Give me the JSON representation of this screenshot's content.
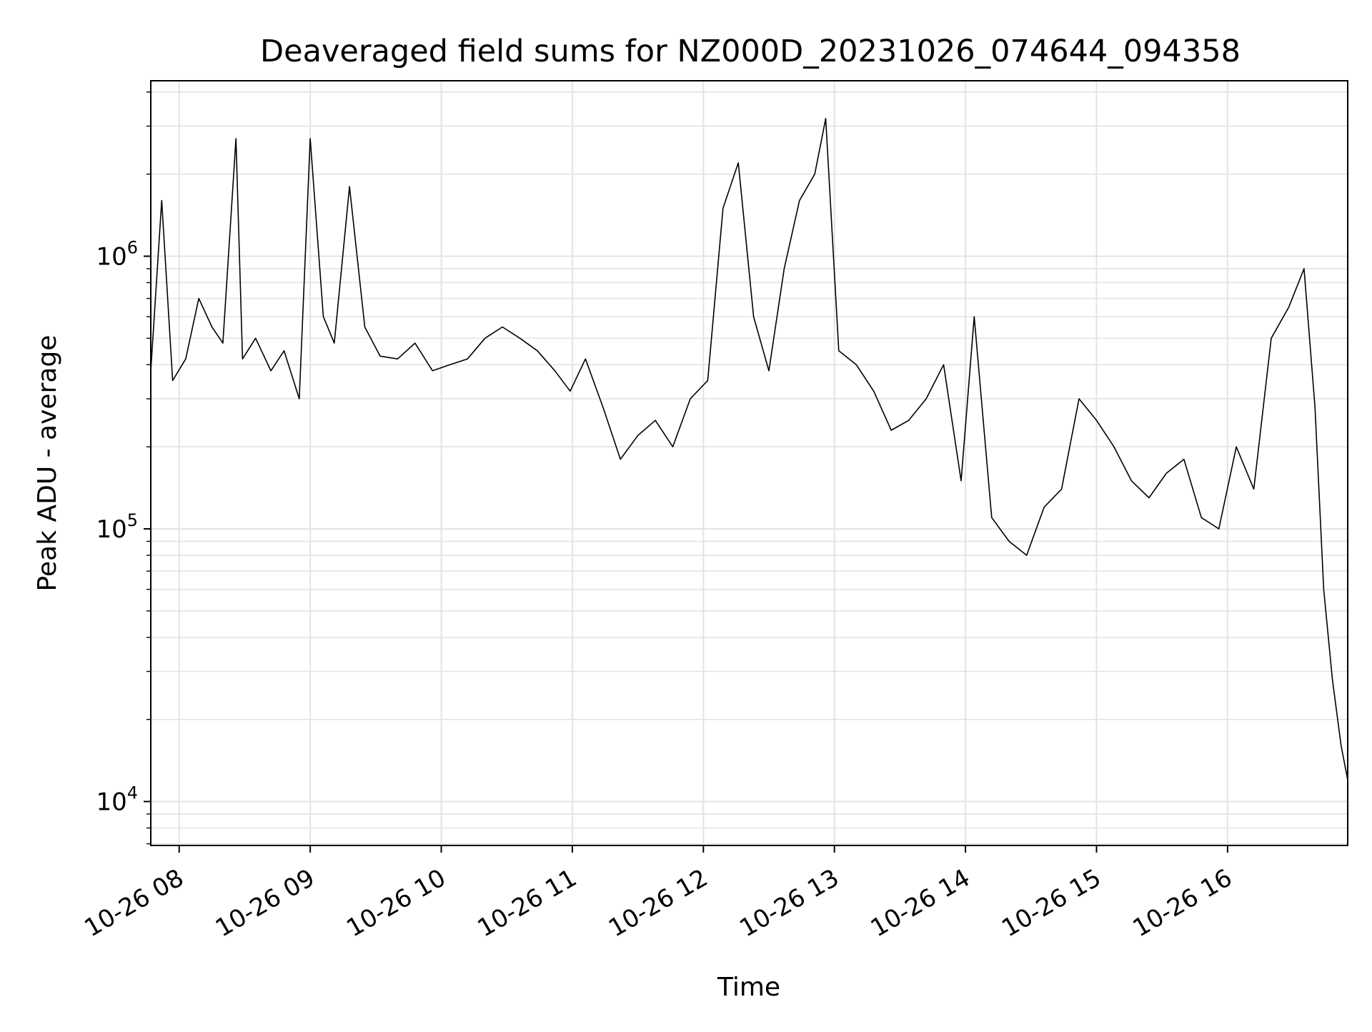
{
  "chart_data": {
    "type": "line",
    "title": "Deaveraged field sums for NZ000D_20231026_074644_094358",
    "xlabel": "Time",
    "ylabel": "Peak ADU - average",
    "yscale": "log",
    "ylim": [
      6900,
      4400000
    ],
    "xlim": [
      "10-26 07:47",
      "10-26 16:55"
    ],
    "grid": true,
    "line_color": "#000000",
    "x_ticks": [
      {
        "label": "10-26 08",
        "value": "10-26 08:00"
      },
      {
        "label": "10-26 09",
        "value": "10-26 09:00"
      },
      {
        "label": "10-26 10",
        "value": "10-26 10:00"
      },
      {
        "label": "10-26 11",
        "value": "10-26 11:00"
      },
      {
        "label": "10-26 12",
        "value": "10-26 12:00"
      },
      {
        "label": "10-26 13",
        "value": "10-26 13:00"
      },
      {
        "label": "10-26 14",
        "value": "10-26 14:00"
      },
      {
        "label": "10-26 15",
        "value": "10-26 15:00"
      },
      {
        "label": "10-26 16",
        "value": "10-26 16:00"
      }
    ],
    "y_ticks": [
      {
        "base": "10",
        "exp": "4",
        "value": 10000
      },
      {
        "base": "10",
        "exp": "5",
        "value": 100000
      },
      {
        "base": "10",
        "exp": "6",
        "value": 1000000
      }
    ],
    "series": [
      {
        "x": [
          "10-26 07:47",
          "10-26 07:52",
          "10-26 07:57",
          "10-26 08:03",
          "10-26 08:09",
          "10-26 08:15",
          "10-26 08:20",
          "10-26 08:26",
          "10-26 08:29",
          "10-26 08:35",
          "10-26 08:42",
          "10-26 08:48",
          "10-26 08:55",
          "10-26 09:00",
          "10-26 09:06",
          "10-26 09:11",
          "10-26 09:18",
          "10-26 09:25",
          "10-26 09:32",
          "10-26 09:40",
          "10-26 09:48",
          "10-26 09:56",
          "10-26 10:04",
          "10-26 10:12",
          "10-26 10:20",
          "10-26 10:28",
          "10-26 10:36",
          "10-26 10:44",
          "10-26 10:52",
          "10-26 10:59",
          "10-26 11:06",
          "10-26 11:14",
          "10-26 11:22",
          "10-26 11:30",
          "10-26 11:38",
          "10-26 11:46",
          "10-26 11:54",
          "10-26 12:02",
          "10-26 12:09",
          "10-26 12:16",
          "10-26 12:23",
          "10-26 12:30",
          "10-26 12:37",
          "10-26 12:44",
          "10-26 12:51",
          "10-26 12:56",
          "10-26 13:02",
          "10-26 13:10",
          "10-26 13:18",
          "10-26 13:26",
          "10-26 13:34",
          "10-26 13:42",
          "10-26 13:50",
          "10-26 13:58",
          "10-26 14:04",
          "10-26 14:12",
          "10-26 14:20",
          "10-26 14:28",
          "10-26 14:36",
          "10-26 14:44",
          "10-26 14:52",
          "10-26 15:00",
          "10-26 15:08",
          "10-26 15:16",
          "10-26 15:24",
          "10-26 15:32",
          "10-26 15:40",
          "10-26 15:48",
          "10-26 15:56",
          "10-26 16:04",
          "10-26 16:12",
          "10-26 16:20",
          "10-26 16:28",
          "10-26 16:35",
          "10-26 16:40",
          "10-26 16:44",
          "10-26 16:48",
          "10-26 16:52",
          "10-26 16:55"
        ],
        "y": [
          380000,
          1600000,
          350000,
          420000,
          700000,
          550000,
          480000,
          2700000,
          420000,
          500000,
          380000,
          450000,
          300000,
          2700000,
          600000,
          480000,
          1800000,
          550000,
          430000,
          420000,
          480000,
          380000,
          400000,
          420000,
          500000,
          550000,
          500000,
          450000,
          380000,
          320000,
          420000,
          280000,
          180000,
          220000,
          250000,
          200000,
          300000,
          350000,
          1500000,
          2200000,
          600000,
          380000,
          900000,
          1600000,
          2000000,
          3200000,
          450000,
          400000,
          320000,
          230000,
          250000,
          300000,
          400000,
          150000,
          600000,
          110000,
          90000,
          80000,
          120000,
          140000,
          300000,
          250000,
          200000,
          150000,
          130000,
          160000,
          180000,
          110000,
          100000,
          200000,
          140000,
          500000,
          650000,
          900000,
          280000,
          60000,
          28000,
          16000,
          12000
        ]
      }
    ]
  }
}
